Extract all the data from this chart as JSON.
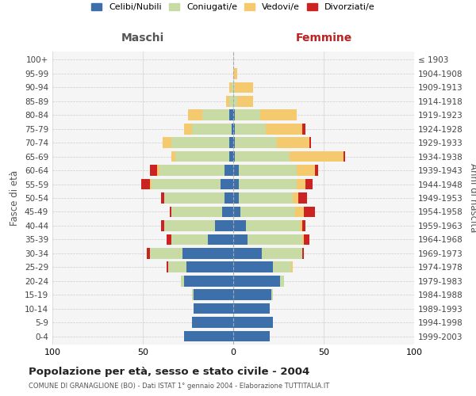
{
  "age_groups": [
    "0-4",
    "5-9",
    "10-14",
    "15-19",
    "20-24",
    "25-29",
    "30-34",
    "35-39",
    "40-44",
    "45-49",
    "50-54",
    "55-59",
    "60-64",
    "65-69",
    "70-74",
    "75-79",
    "80-84",
    "85-89",
    "90-94",
    "95-99",
    "100+"
  ],
  "birth_years": [
    "1999-2003",
    "1994-1998",
    "1989-1993",
    "1984-1988",
    "1979-1983",
    "1974-1978",
    "1969-1973",
    "1964-1968",
    "1959-1963",
    "1954-1958",
    "1949-1953",
    "1944-1948",
    "1939-1943",
    "1934-1938",
    "1929-1933",
    "1924-1928",
    "1919-1923",
    "1914-1918",
    "1909-1913",
    "1904-1908",
    "≤ 1903"
  ],
  "maschi": {
    "celibi": [
      27,
      23,
      22,
      22,
      27,
      26,
      28,
      14,
      10,
      6,
      5,
      7,
      5,
      2,
      2,
      1,
      2,
      0,
      0,
      0,
      0
    ],
    "coniugati": [
      0,
      0,
      0,
      1,
      2,
      10,
      18,
      20,
      28,
      28,
      33,
      38,
      36,
      30,
      32,
      22,
      15,
      2,
      1,
      0,
      0
    ],
    "vedovi": [
      0,
      0,
      0,
      0,
      0,
      0,
      0,
      0,
      0,
      0,
      0,
      1,
      1,
      2,
      5,
      4,
      8,
      2,
      1,
      0,
      0
    ],
    "divorziati": [
      0,
      0,
      0,
      0,
      0,
      1,
      2,
      3,
      2,
      1,
      2,
      5,
      4,
      0,
      0,
      0,
      0,
      0,
      0,
      0,
      0
    ]
  },
  "femmine": {
    "nubili": [
      20,
      22,
      20,
      21,
      26,
      22,
      16,
      8,
      7,
      4,
      3,
      3,
      3,
      1,
      1,
      1,
      1,
      0,
      0,
      0,
      0
    ],
    "coniugate": [
      0,
      0,
      0,
      1,
      2,
      10,
      22,
      30,
      30,
      30,
      30,
      32,
      32,
      30,
      23,
      17,
      14,
      2,
      1,
      0,
      0
    ],
    "vedove": [
      0,
      0,
      0,
      0,
      0,
      1,
      0,
      1,
      1,
      5,
      3,
      5,
      10,
      30,
      18,
      20,
      20,
      9,
      10,
      2,
      0
    ],
    "divorziate": [
      0,
      0,
      0,
      0,
      0,
      0,
      1,
      3,
      2,
      6,
      5,
      4,
      2,
      1,
      1,
      2,
      0,
      0,
      0,
      0,
      0
    ]
  },
  "colors": {
    "celibi": "#3d6faa",
    "coniugati": "#c8dba4",
    "vedovi": "#f5c96e",
    "divorziati": "#cc2222"
  },
  "xlim": 100,
  "title": "Popolazione per età, sesso e stato civile - 2004",
  "subtitle": "COMUNE DI GRANAGLIONE (BO) - Dati ISTAT 1° gennaio 2004 - Elaborazione TUTTITALIA.IT",
  "ylabel_left": "Fasce di età",
  "ylabel_right": "Anni di nascita",
  "label_maschi": "Maschi",
  "label_femmine": "Femmine"
}
